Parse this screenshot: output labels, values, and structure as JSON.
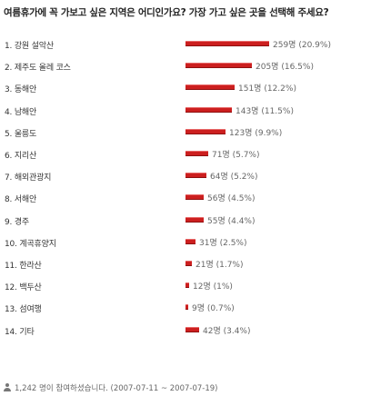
{
  "poll": {
    "question": "여름휴가에 꼭 가보고 싶은 지역은 어디인가요? 가장 가고 싶은 곳을 선택해 주세요?",
    "items": [
      {
        "label": "1. 강원 설악산",
        "votes": 259,
        "votes_text": "259명",
        "percent_text": "(20.9%)",
        "percent": 20.9
      },
      {
        "label": "2. 제주도 올레 코스",
        "votes": 205,
        "votes_text": "205명",
        "percent_text": "(16.5%)",
        "percent": 16.5
      },
      {
        "label": "3. 동해안",
        "votes": 151,
        "votes_text": "151명",
        "percent_text": "(12.2%)",
        "percent": 12.2
      },
      {
        "label": "4. 남해안",
        "votes": 143,
        "votes_text": "143명",
        "percent_text": "(11.5%)",
        "percent": 11.5
      },
      {
        "label": "5. 울릉도",
        "votes": 123,
        "votes_text": "123명",
        "percent_text": "(9.9%)",
        "percent": 9.9
      },
      {
        "label": "6. 지리산",
        "votes": 71,
        "votes_text": "71명",
        "percent_text": "(5.7%)",
        "percent": 5.7
      },
      {
        "label": "7. 해외관광지",
        "votes": 64,
        "votes_text": "64명",
        "percent_text": "(5.2%)",
        "percent": 5.2
      },
      {
        "label": "8. 서해안",
        "votes": 56,
        "votes_text": "56명",
        "percent_text": "(4.5%)",
        "percent": 4.5
      },
      {
        "label": "9. 경주",
        "votes": 55,
        "votes_text": "55명",
        "percent_text": "(4.4%)",
        "percent": 4.4
      },
      {
        "label": "10. 계곡휴양지",
        "votes": 31,
        "votes_text": "31명",
        "percent_text": "(2.5%)",
        "percent": 2.5
      },
      {
        "label": "11. 한라산",
        "votes": 21,
        "votes_text": "21명",
        "percent_text": "(1.7%)",
        "percent": 1.7
      },
      {
        "label": "12. 백두산",
        "votes": 12,
        "votes_text": "12명",
        "percent_text": "(1%)",
        "percent": 1.0
      },
      {
        "label": "13. 섬여행",
        "votes": 9,
        "votes_text": "9명",
        "percent_text": "(0.7%)",
        "percent": 0.7
      },
      {
        "label": "14. 기타",
        "votes": 42,
        "votes_text": "42명",
        "percent_text": "(3.4%)",
        "percent": 3.4
      }
    ],
    "footer": "1,242 명이 참여하셨습니다. (2007-07-11 ~ 2007-07-19)",
    "bar_color": "#cc1f1f"
  }
}
